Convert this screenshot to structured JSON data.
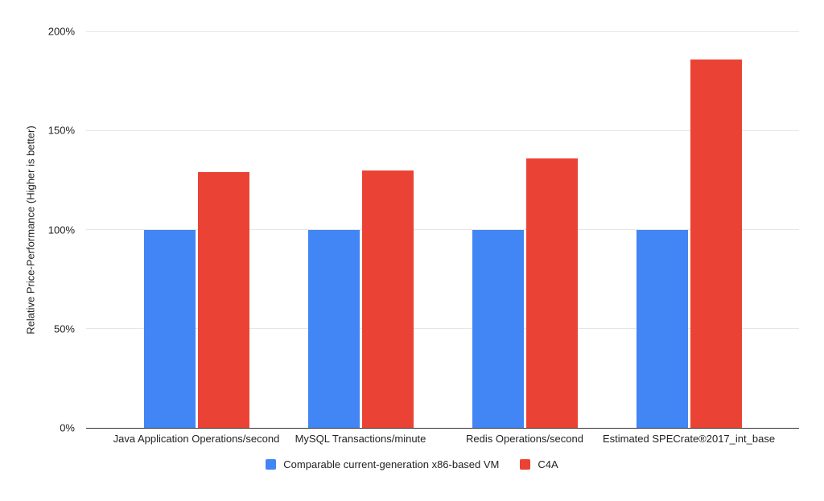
{
  "chart_data": {
    "type": "bar",
    "title": "",
    "categories": [
      "Java Application Operations/second",
      "MySQL Transactions/minute",
      "Redis Operations/second",
      "Estimated SPECrate®2017_int_base"
    ],
    "series": [
      {
        "name": "Comparable current-generation x86-based VM",
        "color": "#4285F4",
        "values": [
          100,
          100,
          100,
          100
        ]
      },
      {
        "name": "C4A",
        "color": "#EA4335",
        "values": [
          129,
          130,
          136,
          186
        ]
      }
    ],
    "xlabel": "",
    "ylabel": "Relative Price-Performance (Higher is better)",
    "ylim": [
      0,
      200
    ],
    "yticks": [
      {
        "value": 0,
        "label": "0%"
      },
      {
        "value": 50,
        "label": "50%"
      },
      {
        "value": 100,
        "label": "100%"
      },
      {
        "value": 150,
        "label": "150%"
      },
      {
        "value": 200,
        "label": "200%"
      }
    ],
    "grid": true,
    "legend_position": "bottom",
    "colors": {
      "gridline": "#e6e6e6",
      "axis_line": "#333333",
      "text": "#222222",
      "background": "#ffffff"
    }
  }
}
